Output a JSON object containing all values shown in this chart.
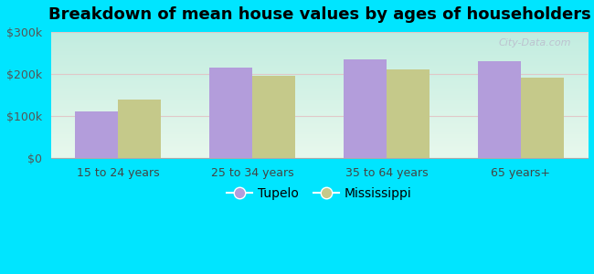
{
  "title": "Breakdown of mean house values by ages of householders",
  "categories": [
    "15 to 24 years",
    "25 to 34 years",
    "35 to 64 years",
    "65 years+"
  ],
  "tupelo_values": [
    110000,
    215000,
    235000,
    230000
  ],
  "mississippi_values": [
    140000,
    195000,
    210000,
    190000
  ],
  "tupelo_color": "#b39ddb",
  "mississippi_color": "#c5c98a",
  "background_outer": "#00e5ff",
  "ylim": [
    0,
    300000
  ],
  "yticks": [
    0,
    100000,
    200000,
    300000
  ],
  "ytick_labels": [
    "$0",
    "$100k",
    "$200k",
    "$300k"
  ],
  "legend_tupelo": "Tupelo",
  "legend_mississippi": "Mississippi",
  "bar_width": 0.32,
  "title_fontsize": 13,
  "tick_fontsize": 9,
  "legend_fontsize": 10,
  "watermark": "City-Data.com"
}
